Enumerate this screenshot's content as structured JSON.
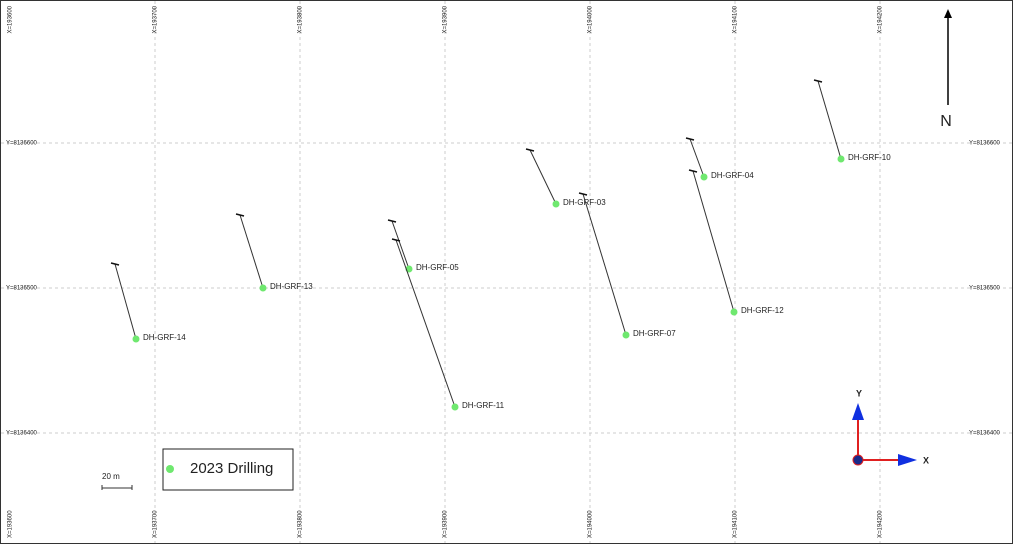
{
  "grid": {
    "x_labels": [
      "X=193600",
      "X=193700",
      "X=193800",
      "X=193900",
      "X=194000",
      "X=194100",
      "X=194200"
    ],
    "y_labels": [
      "Y=8136600",
      "Y=8136500",
      "Y=8136400"
    ]
  },
  "holes": [
    {
      "label": "DH-GRF-14"
    },
    {
      "label": "DH-GRF-13"
    },
    {
      "label": "DH-GRF-05"
    },
    {
      "label": "DH-GRF-11"
    },
    {
      "label": "DH-GRF-03"
    },
    {
      "label": "DH-GRF-07"
    },
    {
      "label": "DH-GRF-04"
    },
    {
      "label": "DH-GRF-12"
    },
    {
      "label": "DH-GRF-10"
    }
  ],
  "legend": {
    "label": "2023 Drilling"
  },
  "scale_bar": "20 m",
  "north": "N",
  "axes": {
    "x": "X",
    "y": "Y"
  }
}
